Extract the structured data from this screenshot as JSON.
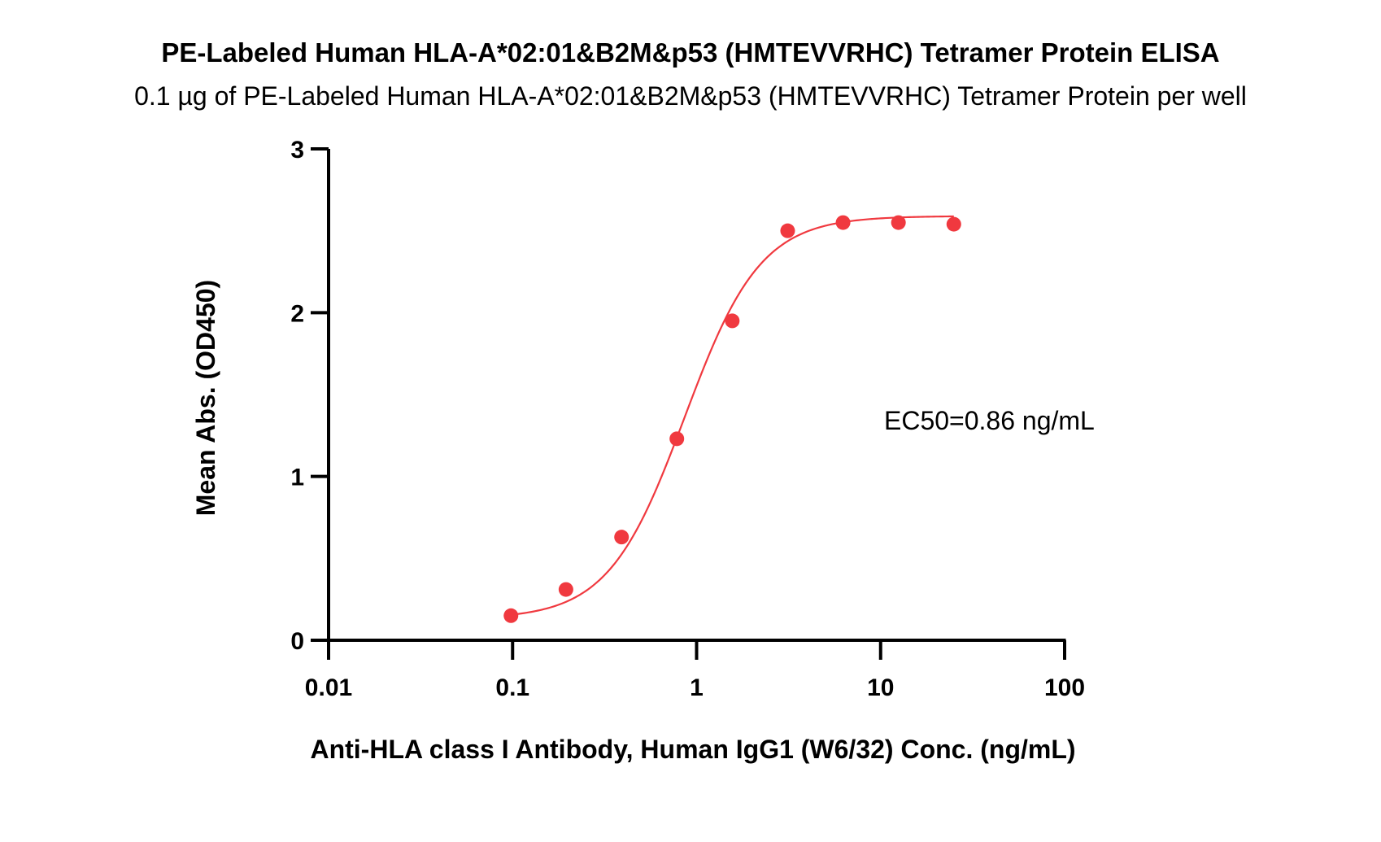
{
  "chart_data": {
    "type": "scatter",
    "title": "PE-Labeled Human HLA-A*02:01&B2M&p53 (HMTEVVRHC) Tetramer Protein ELISA",
    "subtitle": "0.1 µg of PE-Labeled Human HLA-A*02:01&B2M&p53 (HMTEVVRHC) Tetramer Protein per well",
    "xlabel": "Anti-HLA class I Antibody, Human IgG1 (W6/32) Conc. (ng/mL)",
    "ylabel": "Mean Abs. (OD450)",
    "x_scale": "log",
    "xlim": [
      0.01,
      100
    ],
    "ylim": [
      0,
      3
    ],
    "x_ticks": [
      "0.01",
      "0.1",
      "1",
      "10",
      "100"
    ],
    "y_ticks": [
      "0",
      "1",
      "2",
      "3"
    ],
    "grid": false,
    "annotation": "EC50=0.86 ng/mL",
    "colors": {
      "series": "#f0393f",
      "axis": "#000000"
    },
    "series": [
      {
        "x": [
          0.098,
          0.195,
          0.391,
          0.781,
          1.5625,
          3.125,
          6.25,
          12.5,
          25
        ],
        "y": [
          0.15,
          0.31,
          0.63,
          1.23,
          1.95,
          2.5,
          2.55,
          2.55,
          2.54
        ]
      }
    ],
    "fit": {
      "model": "4PL",
      "bottom": 0.13,
      "top": 2.59,
      "ec50": 0.86,
      "hill": 2.1,
      "x_range": [
        0.098,
        25
      ]
    }
  }
}
